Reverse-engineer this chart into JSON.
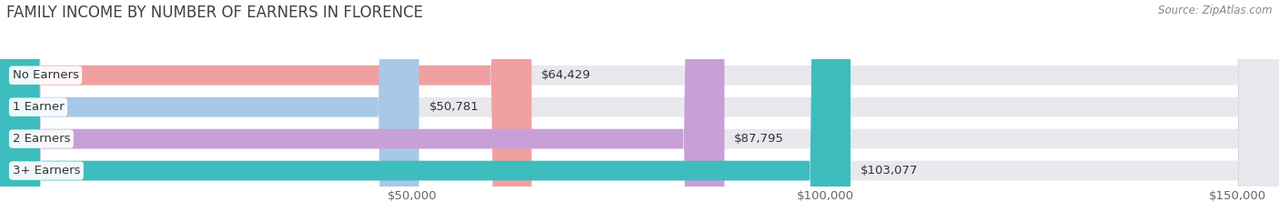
{
  "title": "FAMILY INCOME BY NUMBER OF EARNERS IN FLORENCE",
  "source": "Source: ZipAtlas.com",
  "categories": [
    "No Earners",
    "1 Earner",
    "2 Earners",
    "3+ Earners"
  ],
  "values": [
    64429,
    50781,
    87795,
    103077
  ],
  "bar_colors": [
    "#f0a0a0",
    "#a8c8e8",
    "#c8a0d8",
    "#3dbdbd"
  ],
  "bar_bg_color": "#e8e8ed",
  "xlim": [
    0,
    155000
  ],
  "xticks": [
    50000,
    100000,
    150000
  ],
  "xtick_labels": [
    "$50,000",
    "$100,000",
    "$150,000"
  ],
  "value_labels": [
    "$64,429",
    "$50,781",
    "$87,795",
    "$103,077"
  ],
  "background_color": "#ffffff",
  "bar_height": 0.62,
  "title_fontsize": 12,
  "label_fontsize": 9.5,
  "value_fontsize": 9.5,
  "source_fontsize": 8.5
}
